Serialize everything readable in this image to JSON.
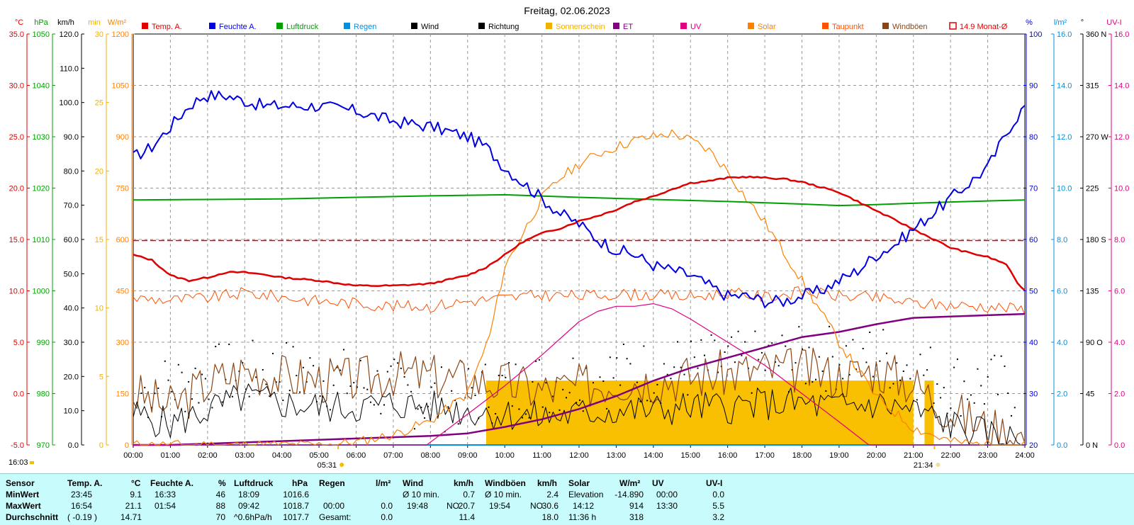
{
  "title": "Freitag, 02.06.2023",
  "legend": [
    {
      "label": "Temp. A.",
      "color": "#e00000"
    },
    {
      "label": "Feuchte A.",
      "color": "#0000e0"
    },
    {
      "label": "Luftdruck",
      "color": "#00a000"
    },
    {
      "label": "Regen",
      "color": "#0090e0"
    },
    {
      "label": "Wind",
      "color": "#000000"
    },
    {
      "label": "Richtung",
      "color": "#000000"
    },
    {
      "label": "Sonnenschein",
      "color": "#f0b000"
    },
    {
      "label": "ET",
      "color": "#800080"
    },
    {
      "label": "UV",
      "color": "#e00080"
    },
    {
      "label": "Solar",
      "color": "#ff8000"
    },
    {
      "label": "Taupunkt",
      "color": "#ff5000"
    },
    {
      "label": "Windböen",
      "color": "#8b4513"
    },
    {
      "label": "14.9 Monat-Ø",
      "color": "#e00000"
    }
  ],
  "axis_headers": {
    "temp": "°C",
    "hpa": "hPa",
    "kmh": "km/h",
    "min": "min",
    "wm2": "W/m²",
    "pct": "%",
    "lm2": "l/m²",
    "deg": "°",
    "uvi": "UV-I"
  },
  "axes": {
    "temp": [
      "35.0",
      "30.0",
      "25.0",
      "20.0",
      "15.0",
      "10.0",
      "5.0",
      "0.0",
      "-5.0"
    ],
    "hpa": [
      "1050",
      "1040",
      "1030",
      "1020",
      "1010",
      "1000",
      "990",
      "980",
      "970"
    ],
    "kmh": [
      "120.0",
      "110.0",
      "100.0",
      "90.0",
      "80.0",
      "70.0",
      "60.0",
      "50.0",
      "40.0",
      "30.0",
      "20.0",
      "10.0",
      "0.0"
    ],
    "min": [
      "30",
      "25",
      "20",
      "15",
      "10",
      "5",
      "0"
    ],
    "wm2": [
      "1200",
      "1050",
      "900",
      "750",
      "600",
      "450",
      "300",
      "150",
      "0"
    ],
    "pct": [
      "100",
      "90",
      "80",
      "70",
      "60",
      "50",
      "40",
      "30",
      "20"
    ],
    "lm2": [
      "16.0",
      "14.0",
      "12.0",
      "10.0",
      "8.0",
      "6.0",
      "4.0",
      "2.0",
      "0.0"
    ],
    "deg": [
      "360 N",
      "315",
      "270 W",
      "225",
      "180 S",
      "135",
      "90 O",
      "45",
      "0 N"
    ],
    "uvi": [
      "16.0",
      "14.0",
      "12.0",
      "10.0",
      "8.0",
      "6.0",
      "4.0",
      "2.0",
      "0.0"
    ]
  },
  "x_ticks": [
    "00:00",
    "01:00",
    "02:00",
    "03:00",
    "04:00",
    "05:00",
    "06:00",
    "07:00",
    "08:00",
    "09:00",
    "10:00",
    "11:00",
    "12:00",
    "13:00",
    "14:00",
    "15:00",
    "16:00",
    "17:00",
    "18:00",
    "19:00",
    "20:00",
    "21:00",
    "22:00",
    "23:00",
    "24:00"
  ],
  "sunrise": "05:31",
  "sunset": "21:34",
  "current_time": "16:03",
  "chart_data": {
    "type": "line",
    "title": "Freitag, 02.06.2023",
    "x_unit": "hour of day",
    "x_range": [
      0,
      24
    ],
    "monthly_avg_temp": 14.9,
    "series": [
      {
        "name": "Temp. A.",
        "unit": "°C",
        "axis": "temp",
        "color": "#e00000",
        "x": [
          0,
          0.5,
          1,
          1.5,
          2,
          2.5,
          3,
          3.5,
          4,
          5,
          6,
          7,
          8,
          9,
          9.5,
          10,
          10.5,
          11,
          11.5,
          12,
          12.5,
          13,
          13.5,
          14,
          14.5,
          15,
          15.5,
          16,
          16.5,
          17,
          17.5,
          18,
          18.5,
          19,
          19.5,
          20,
          20.5,
          21,
          21.5,
          22,
          22.5,
          23,
          23.5,
          23.75,
          24
        ],
        "y": [
          13.5,
          13.0,
          11.5,
          11.0,
          11.3,
          11.8,
          11.8,
          11.6,
          11.3,
          11.0,
          10.5,
          10.5,
          10.7,
          11.5,
          12.3,
          13.5,
          14.8,
          15.6,
          16.1,
          16.8,
          17.3,
          17.9,
          18.7,
          19.2,
          19.9,
          20.5,
          20.7,
          21.0,
          21.1,
          21.0,
          20.9,
          20.6,
          20.1,
          19.6,
          18.7,
          17.8,
          16.9,
          16.0,
          15.1,
          14.2,
          13.7,
          13.3,
          12.6,
          11.0,
          10.0
        ]
      },
      {
        "name": "Feuchte A.",
        "unit": "%",
        "axis": "pct",
        "color": "#0000e0",
        "x": [
          0,
          0.5,
          1,
          1.5,
          1.9,
          2.5,
          3,
          3.5,
          4,
          5,
          6,
          7,
          8,
          8.5,
          9,
          9.5,
          10,
          10.5,
          11,
          11.5,
          12,
          12.5,
          13,
          13.5,
          14,
          14.5,
          15,
          15.5,
          16,
          16.5,
          17,
          17.5,
          18,
          18.5,
          19,
          19.5,
          20,
          20.5,
          21,
          21.5,
          22,
          22.5,
          23,
          23.3,
          23.6,
          24
        ],
        "y": [
          76,
          78,
          82,
          86,
          88,
          88,
          87,
          86,
          86,
          86,
          85,
          83,
          82,
          81,
          80,
          78,
          74,
          71,
          68,
          65,
          63,
          60,
          58,
          57,
          55,
          54,
          53,
          51,
          49,
          49,
          48,
          48,
          49,
          50,
          52,
          54,
          57,
          59,
          62,
          65,
          68,
          71,
          74,
          78,
          82,
          86
        ]
      },
      {
        "name": "Luftdruck",
        "unit": "hPa",
        "axis": "hpa",
        "color": "#00a000",
        "x": [
          0,
          2,
          4,
          6,
          8,
          10,
          12,
          14,
          16,
          18,
          19,
          20,
          22,
          24
        ],
        "y": [
          1017.7,
          1017.8,
          1017.9,
          1018.2,
          1018.5,
          1018.7,
          1018.2,
          1017.8,
          1017.4,
          1016.9,
          1016.6,
          1016.8,
          1017.3,
          1017.7
        ]
      },
      {
        "name": "Regen",
        "unit": "l/m²",
        "axis": "lm2",
        "color": "#0090e0",
        "x": [
          0,
          24
        ],
        "y": [
          0.0,
          0.0
        ]
      },
      {
        "name": "Wind",
        "unit": "km/h",
        "axis": "kmh",
        "color": "#000000",
        "x": [
          0,
          1,
          2,
          3,
          4,
          5,
          6,
          7,
          8,
          9,
          10,
          11,
          12,
          13,
          14,
          15,
          16,
          17,
          18,
          19,
          20,
          21,
          22,
          23,
          24
        ],
        "y": [
          9,
          6,
          10,
          14,
          12,
          11,
          11,
          12,
          11,
          10,
          9,
          8,
          9,
          10,
          10,
          11,
          11,
          12,
          12,
          11,
          12,
          10,
          6,
          3,
          0.7
        ]
      },
      {
        "name": "Richtung",
        "unit": "°",
        "axis": "deg",
        "color": "#000000",
        "x": [
          0,
          2,
          4,
          6,
          8,
          10,
          12,
          14,
          16,
          18,
          20,
          22,
          24
        ],
        "y": [
          45,
          60,
          65,
          55,
          40,
          50,
          60,
          65,
          70,
          75,
          80,
          55,
          50
        ]
      },
      {
        "name": "Sonnenschein",
        "unit": "min",
        "axis": "min",
        "color": "#f0b000",
        "x": [
          9.5,
          21.0
        ],
        "y": [
          4.7,
          4.7
        ]
      },
      {
        "name": "ET",
        "unit": "l/m²",
        "axis": "lm2",
        "color": "#800080",
        "x": [
          0,
          1,
          2,
          3,
          4,
          5,
          6,
          7,
          8,
          9,
          10,
          11,
          12,
          13,
          14,
          15,
          16,
          17,
          18,
          19,
          20,
          21,
          22,
          23,
          24
        ],
        "y": [
          0.0,
          0.0,
          0.05,
          0.1,
          0.15,
          0.2,
          0.25,
          0.3,
          0.35,
          0.45,
          0.7,
          1.0,
          1.4,
          1.9,
          2.5,
          3.0,
          3.4,
          3.8,
          4.2,
          4.4,
          4.7,
          4.95,
          5.0,
          5.05,
          5.1
        ]
      },
      {
        "name": "UV",
        "unit": "UV-I",
        "axis": "uvi",
        "color": "#e00080",
        "x": [
          0,
          7.9,
          9,
          10,
          11,
          12,
          12.5,
          13,
          13.5,
          14,
          14.5,
          15,
          16,
          17,
          18,
          19,
          19.8,
          24
        ],
        "y": [
          0,
          0,
          1.2,
          2.3,
          3.5,
          4.8,
          5.2,
          5.4,
          5.4,
          5.5,
          5.3,
          4.9,
          4.0,
          3.1,
          2.0,
          0.9,
          0.0,
          0
        ]
      },
      {
        "name": "Solar",
        "unit": "W/m²",
        "axis": "wm2",
        "color": "#ff8000",
        "x": [
          0,
          5,
          6,
          7,
          8,
          9,
          9.6,
          10,
          10.5,
          11,
          11.5,
          12,
          12.5,
          13,
          13.5,
          14,
          14.5,
          15,
          15.5,
          16,
          16.5,
          17,
          18,
          19,
          20,
          21,
          22,
          23,
          24
        ],
        "y": [
          0,
          0,
          8,
          30,
          70,
          150,
          320,
          520,
          620,
          720,
          780,
          820,
          850,
          870,
          890,
          900,
          910,
          890,
          860,
          800,
          720,
          650,
          480,
          300,
          140,
          50,
          10,
          0,
          0
        ]
      },
      {
        "name": "Taupunkt",
        "unit": "°C",
        "axis": "temp",
        "color": "#ff5000",
        "x": [
          0,
          1,
          2,
          3,
          4,
          5,
          6,
          7,
          8,
          9,
          10,
          11,
          12,
          13,
          14,
          15,
          16,
          17,
          18,
          19,
          20,
          21,
          22,
          23,
          24
        ],
        "y": [
          9.3,
          9.1,
          9.3,
          9.8,
          9.4,
          9.0,
          8.8,
          8.5,
          8.5,
          9.0,
          9.3,
          9.6,
          9.5,
          9.7,
          9.6,
          9.4,
          9.8,
          9.4,
          9.9,
          9.5,
          9.3,
          8.8,
          8.6,
          8.5,
          8.2
        ]
      },
      {
        "name": "Windböen",
        "unit": "km/h",
        "axis": "kmh",
        "color": "#8b4513",
        "x": [
          0,
          1,
          2,
          3,
          4,
          5,
          6,
          7,
          8,
          9,
          10,
          11,
          12,
          13,
          14,
          15,
          16,
          17,
          18,
          19,
          20,
          21,
          22,
          23,
          24
        ],
        "y": [
          15,
          11,
          18,
          22,
          20,
          19,
          19,
          21,
          20,
          19,
          18,
          16,
          17,
          19,
          19,
          20,
          21,
          22,
          22,
          20,
          22,
          18,
          10,
          5,
          2.4
        ]
      }
    ]
  },
  "summary": {
    "rows": [
      "Sensor",
      "MinWert",
      "MaxWert",
      "Durchschnitt"
    ],
    "temp": {
      "header": "Temp. A.",
      "unit": "°C",
      "min_time": "23:45",
      "min": "9.1",
      "max_time": "16:54",
      "max": "21.1",
      "trend": "( -0.19 )",
      "avg": "14.71"
    },
    "hum": {
      "header": "Feuchte A.",
      "unit": "%",
      "min_time": "16:33",
      "min": "46",
      "max_time": "01:54",
      "max": "88",
      "avg": "70"
    },
    "press": {
      "header": "Luftdruck",
      "unit": "hPa",
      "min_time": "18:09",
      "min": "1016.6",
      "max_time": "09:42",
      "max": "1018.7",
      "trend": "^0.6hPa/h",
      "avg": "1017.7"
    },
    "rain": {
      "header": "Regen",
      "unit": "l/m²",
      "max_time": "00:00",
      "max": "0.0",
      "total_label": "Gesamt:",
      "total": "0.0"
    },
    "wind": {
      "header": "Wind",
      "unit": "km/h",
      "min_label": "Ø 10 min.",
      "min": "0.7",
      "max_time": "19:48",
      "max_dir": "NO",
      "max": "20.7",
      "avg": "11.4"
    },
    "gust": {
      "header": "Windböen",
      "unit": "km/h",
      "min_label": "Ø 10 min.",
      "min": "2.4",
      "max_time": "19:54",
      "max_dir": "NO",
      "max": "30.6",
      "avg": "18.0"
    },
    "solar": {
      "header": "Solar",
      "unit": "W/m²",
      "min_label": "Elevation",
      "min": "-14.890",
      "max_time": "14:12",
      "max": "914",
      "avg_label": "11:36 h",
      "avg": "318"
    },
    "uv": {
      "header": "UV",
      "unit": "UV-I",
      "min_time": "00:00",
      "min": "0.0",
      "max_time": "13:30",
      "max": "5.5",
      "avg": "3.2"
    }
  }
}
